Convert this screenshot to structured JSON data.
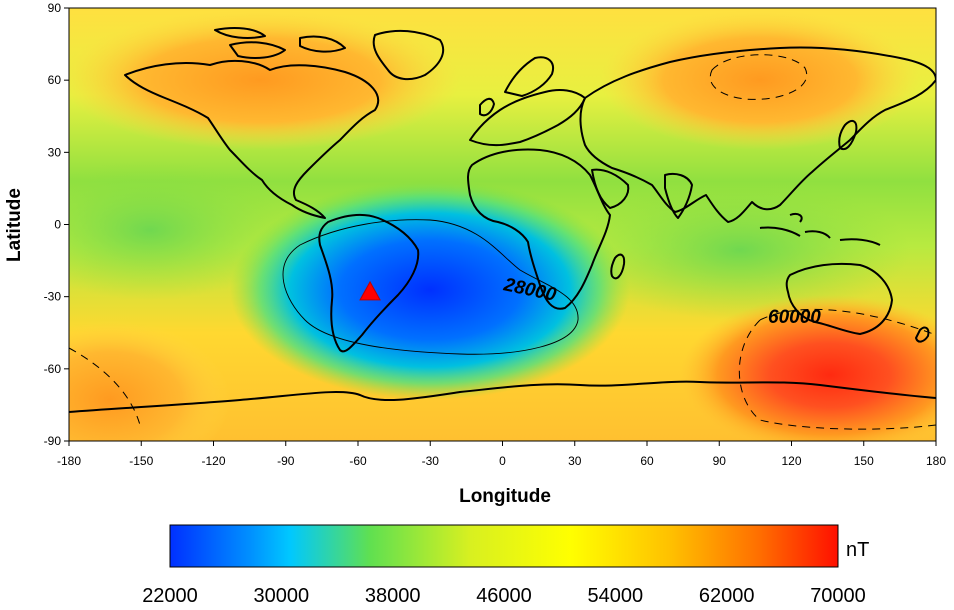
{
  "map": {
    "x_axis_title": "Longitude",
    "y_axis_title": "Latitude",
    "x_ticks": [
      "-180",
      "-150",
      "-120",
      "-90",
      "-60",
      "-30",
      "0",
      "30",
      "60",
      "90",
      "120",
      "150",
      "180"
    ],
    "y_ticks": [
      "90",
      "60",
      "30",
      "0",
      "-30",
      "-60",
      "-90"
    ],
    "contours": [
      {
        "label": "28000",
        "style": "solid"
      },
      {
        "label": "60000",
        "style": "dashed"
      }
    ],
    "marker": {
      "name": "red-triangle",
      "color": "#ff0000",
      "lon": -55,
      "lat": -28
    }
  },
  "colorbar": {
    "unit": "nT",
    "ticks": [
      "22000",
      "30000",
      "38000",
      "46000",
      "54000",
      "62000",
      "70000"
    ],
    "colors": [
      "#0022ff",
      "#00c8ff",
      "#7ee000",
      "#ffff00",
      "#ffb000",
      "#ff2000"
    ]
  }
}
